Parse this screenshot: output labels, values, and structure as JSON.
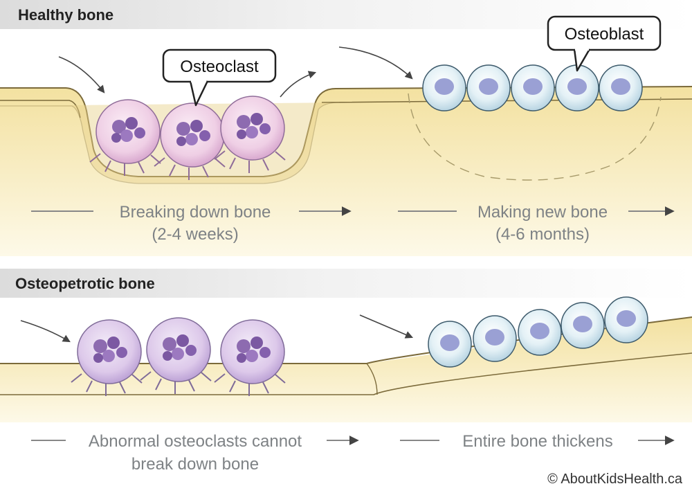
{
  "sections": {
    "healthy": {
      "title": "Healthy bone",
      "callout_osteoclast": "Osteoclast",
      "callout_osteoblast": "Osteoblast",
      "step1_line1": "Breaking down bone",
      "step1_line2": "(2-4 weeks)",
      "step2_line1": "Making new bone",
      "step2_line2": "(4-6 months)"
    },
    "osteopetrotic": {
      "title": "Osteopetrotic bone",
      "step1_line1": "Abnormal osteoclasts cannot",
      "step1_line2": "break down bone",
      "step2_line1": "Entire bone thickens"
    }
  },
  "copyright": "© AboutKidsHealth.ca",
  "colors": {
    "bone": "#f3e3a9",
    "bone_light": "#fbf5dc",
    "bone_edge": "#8b7a45",
    "osteoclast": "#e8cde8",
    "osteoclast_abnormal": "#d9c8e6",
    "nucleus": "#8d6bb0",
    "osteoblast": "#d7e8f0",
    "osteoblast_nucleus": "#9aa0d4",
    "label_text": "#7e8285",
    "header_band": "#e6e6e6"
  }
}
